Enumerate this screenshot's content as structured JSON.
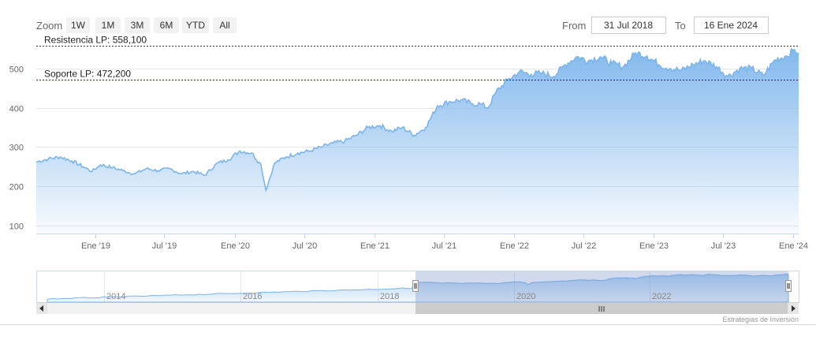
{
  "toolbar": {
    "zoom_label": "Zoom",
    "zoom_buttons": [
      "1W",
      "1M",
      "3M",
      "6M",
      "YTD",
      "All"
    ],
    "from_label": "From",
    "from_value": "31 Jul 2018",
    "to_label": "To",
    "to_value": "16 Ene 2024"
  },
  "chart_data": {
    "type": "area",
    "title": "",
    "xlabel": "",
    "ylabel": "",
    "x_range": [
      "2018-07-31",
      "2024-01-16"
    ],
    "ylim": [
      80,
      560
    ],
    "y_ticks": [
      100,
      200,
      300,
      400,
      500
    ],
    "x_tick_labels": [
      {
        "date": "2019-01-01",
        "label": "Ene '19"
      },
      {
        "date": "2019-07-01",
        "label": "Jul '19"
      },
      {
        "date": "2020-01-01",
        "label": "Ene '20"
      },
      {
        "date": "2020-07-01",
        "label": "Jul '20"
      },
      {
        "date": "2021-01-01",
        "label": "Ene '21"
      },
      {
        "date": "2021-07-01",
        "label": "Jul '21"
      },
      {
        "date": "2022-01-01",
        "label": "Ene '22"
      },
      {
        "date": "2022-07-01",
        "label": "Jul '22"
      },
      {
        "date": "2023-01-01",
        "label": "Ene '23"
      },
      {
        "date": "2023-07-01",
        "label": "Jul '23"
      },
      {
        "date": "2024-01-01",
        "label": "Ene '24"
      }
    ],
    "grid": true,
    "series_color": "#7cb5ec",
    "reference_lines": [
      {
        "label": "Resistencia LP: 558,100",
        "value": 558.1
      },
      {
        "label": "Soporte LP: 472,200",
        "value": 472.2
      }
    ],
    "series": [
      {
        "x": [
          "2018-07-31",
          "2018-09-01",
          "2018-10-01",
          "2018-11-01",
          "2018-12-01",
          "2018-12-24",
          "2019-01-15",
          "2019-02-15",
          "2019-03-15",
          "2019-04-15",
          "2019-05-15",
          "2019-06-15",
          "2019-07-15",
          "2019-08-15",
          "2019-09-15",
          "2019-10-15",
          "2019-11-15",
          "2019-12-15",
          "2020-01-15",
          "2020-02-15",
          "2020-03-10",
          "2020-03-23",
          "2020-04-15",
          "2020-05-15",
          "2020-06-15",
          "2020-07-15",
          "2020-08-15",
          "2020-09-15",
          "2020-10-15",
          "2020-11-15",
          "2020-12-15",
          "2021-01-15",
          "2021-02-15",
          "2021-03-15",
          "2021-04-15",
          "2021-05-15",
          "2021-06-15",
          "2021-07-15",
          "2021-08-15",
          "2021-09-15",
          "2021-10-05",
          "2021-10-25",
          "2021-11-15",
          "2021-12-15",
          "2022-01-15",
          "2022-02-15",
          "2022-03-15",
          "2022-04-15",
          "2022-05-15",
          "2022-06-15",
          "2022-07-15",
          "2022-08-15",
          "2022-09-15",
          "2022-10-15",
          "2022-11-15",
          "2022-12-15",
          "2023-01-15",
          "2023-02-15",
          "2023-03-15",
          "2023-04-15",
          "2023-05-15",
          "2023-06-15",
          "2023-07-15",
          "2023-08-15",
          "2023-09-15",
          "2023-10-15",
          "2023-11-15",
          "2023-12-15",
          "2024-01-05",
          "2024-01-16"
        ],
        "values": [
          262,
          270,
          275,
          265,
          250,
          238,
          255,
          248,
          240,
          232,
          245,
          240,
          245,
          232,
          238,
          228,
          258,
          268,
          290,
          285,
          255,
          190,
          260,
          275,
          285,
          290,
          300,
          310,
          315,
          330,
          350,
          355,
          340,
          350,
          330,
          350,
          405,
          415,
          420,
          410,
          410,
          400,
          440,
          470,
          492,
          485,
          488,
          480,
          510,
          530,
          520,
          530,
          512,
          505,
          540,
          532,
          510,
          500,
          495,
          510,
          520,
          505,
          480,
          500,
          500,
          482,
          522,
          532,
          548,
          540
        ]
      }
    ]
  },
  "navigator": {
    "year_labels": [
      "2014",
      "2016",
      "2018",
      "2020",
      "2022"
    ],
    "scroll_handle_icon": "grip-icon",
    "left_arrow_icon": "arrow-left-icon",
    "right_arrow_icon": "arrow-right-icon"
  },
  "credits": "Estrategias de Inversión"
}
